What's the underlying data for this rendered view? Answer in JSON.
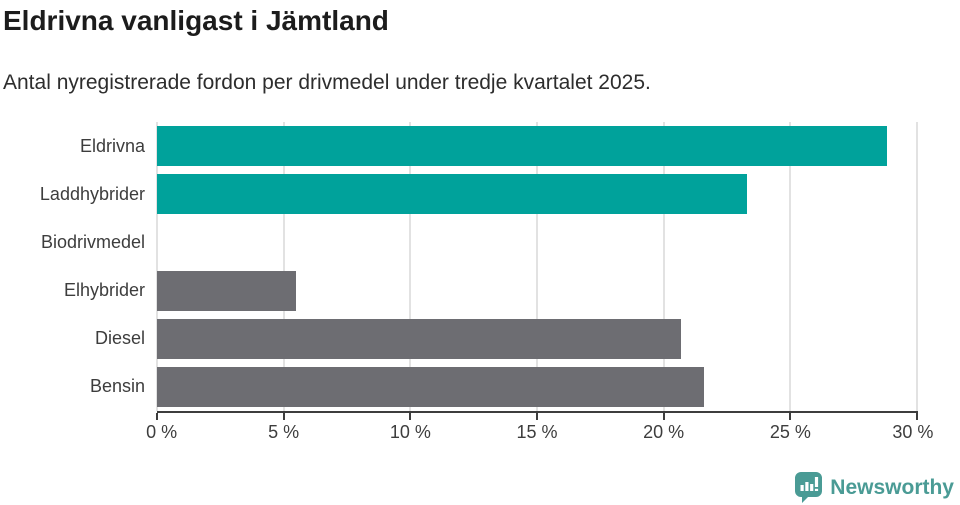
{
  "title": "Eldrivna vanligast i Jämtland",
  "subtitle": "Antal nyregistrerade fordon per drivmedel under tredje kvartalet 2025.",
  "chart_data": {
    "type": "bar",
    "orientation": "horizontal",
    "title": "Eldrivna vanligast i Jämtland",
    "subtitle": "Antal nyregistrerade fordon per drivmedel under tredje kvartalet 2025.",
    "categories": [
      "Eldrivna",
      "Laddhybrider",
      "Biodrivmedel",
      "Elhybrider",
      "Diesel",
      "Bensin"
    ],
    "values": [
      28.8,
      23.3,
      0,
      5.5,
      20.7,
      21.6
    ],
    "unit": "%",
    "xlim": [
      0,
      30
    ],
    "x_ticks": [
      0,
      5,
      10,
      15,
      20,
      25,
      30
    ],
    "x_tick_labels": [
      "0 %",
      "5 %",
      "10 %",
      "15 %",
      "20 %",
      "25 %",
      "30 %"
    ],
    "grid": "vertical-gridlines-on",
    "legend": "none",
    "bar_colors": [
      "#00a29b",
      "#00a29b",
      "#00a29b",
      "#6d6d72",
      "#6d6d72",
      "#6d6d72"
    ],
    "highlight_color": "#00a29b",
    "default_color": "#6d6d72"
  },
  "footer": {
    "brand": "Newsworthy",
    "brand_color": "#4a9b95",
    "logo_icon": "bar-chart-speech-bubble-icon"
  }
}
